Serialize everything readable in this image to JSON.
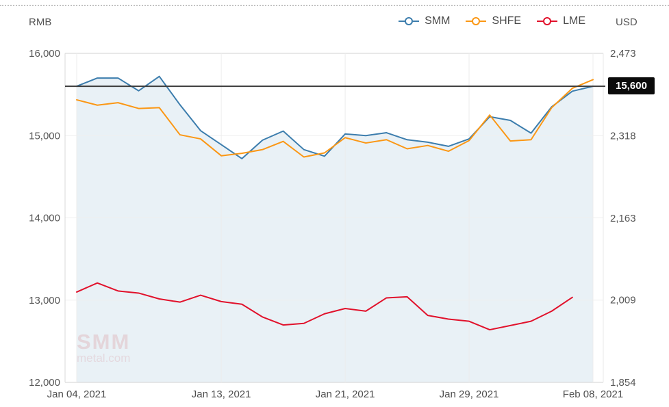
{
  "header": {
    "left_axis_unit": "RMB",
    "right_axis_unit": "USD"
  },
  "legend": [
    {
      "label": "SMM",
      "color": "#3c7dad"
    },
    {
      "label": "SHFE",
      "color": "#fb9714"
    },
    {
      "label": "LME",
      "color": "#e1112b"
    }
  ],
  "reference_line": {
    "value": 15600,
    "label": "15,600"
  },
  "watermark": {
    "line1": "SMM",
    "line2": "metal.com"
  },
  "chart_data": {
    "type": "line",
    "x": [
      "Jan 04",
      "Jan 05",
      "Jan 06",
      "Jan 07",
      "Jan 08",
      "Jan 11",
      "Jan 12",
      "Jan 13",
      "Jan 14",
      "Jan 15",
      "Jan 18",
      "Jan 19",
      "Jan 20",
      "Jan 21",
      "Jan 22",
      "Jan 25",
      "Jan 26",
      "Jan 27",
      "Jan 28",
      "Jan 29",
      "Feb 01",
      "Feb 02",
      "Feb 03",
      "Feb 04",
      "Feb 05",
      "Feb 08"
    ],
    "x_ticks": [
      {
        "index": 0,
        "label": "Jan 04, 2021"
      },
      {
        "index": 7,
        "label": "Jan 13, 2021"
      },
      {
        "index": 13,
        "label": "Jan 21, 2021"
      },
      {
        "index": 19,
        "label": "Jan 29, 2021"
      },
      {
        "index": 25,
        "label": "Feb 08, 2021"
      }
    ],
    "left_axis": {
      "unit": "RMB",
      "range": [
        12000,
        16000
      ],
      "ticks": [
        {
          "value": 16000,
          "label": "16,000"
        },
        {
          "value": 15000,
          "label": "15,000"
        },
        {
          "value": 14000,
          "label": "14,000"
        },
        {
          "value": 13000,
          "label": "13,000"
        },
        {
          "value": 12000,
          "label": "12,000"
        }
      ]
    },
    "right_axis": {
      "unit": "USD",
      "range": [
        1854,
        2473
      ],
      "ticks": [
        {
          "value": 2473,
          "label": "2,473"
        },
        {
          "value": 2318,
          "label": "2,318"
        },
        {
          "value": 2163,
          "label": "2,163"
        },
        {
          "value": 2009,
          "label": "2,009"
        },
        {
          "value": 1854,
          "label": "1,854"
        }
      ]
    },
    "grid": true,
    "legend_position": "top-right",
    "series": [
      {
        "name": "SMM",
        "axis": "left",
        "color": "#3c7dad",
        "area": true,
        "area_color": "#e9f1f6",
        "values": [
          15600,
          15700,
          15700,
          15545,
          15720,
          15375,
          15060,
          14890,
          14720,
          14945,
          15055,
          14830,
          14750,
          15020,
          15000,
          15035,
          14950,
          14920,
          14870,
          14960,
          15230,
          15185,
          15030,
          15350,
          15540,
          15600
        ]
      },
      {
        "name": "SHFE",
        "axis": "left",
        "color": "#fb9714",
        "area": false,
        "values": [
          15435,
          15370,
          15400,
          15330,
          15340,
          15010,
          14960,
          14755,
          14785,
          14830,
          14930,
          14740,
          14790,
          14975,
          14910,
          14950,
          14840,
          14880,
          14810,
          14940,
          15250,
          14935,
          14950,
          15340,
          15575,
          15680
        ]
      },
      {
        "name": "LME",
        "axis": "right",
        "color": "#e1112b",
        "area": false,
        "values": [
          2024,
          2041,
          2026,
          2022,
          2011,
          2005,
          2018,
          2006,
          2001,
          1977,
          1962,
          1965,
          1983,
          1993,
          1988,
          2013,
          2015,
          1980,
          1973,
          1969,
          1953,
          1961,
          1969,
          1988,
          2014
        ]
      }
    ]
  }
}
